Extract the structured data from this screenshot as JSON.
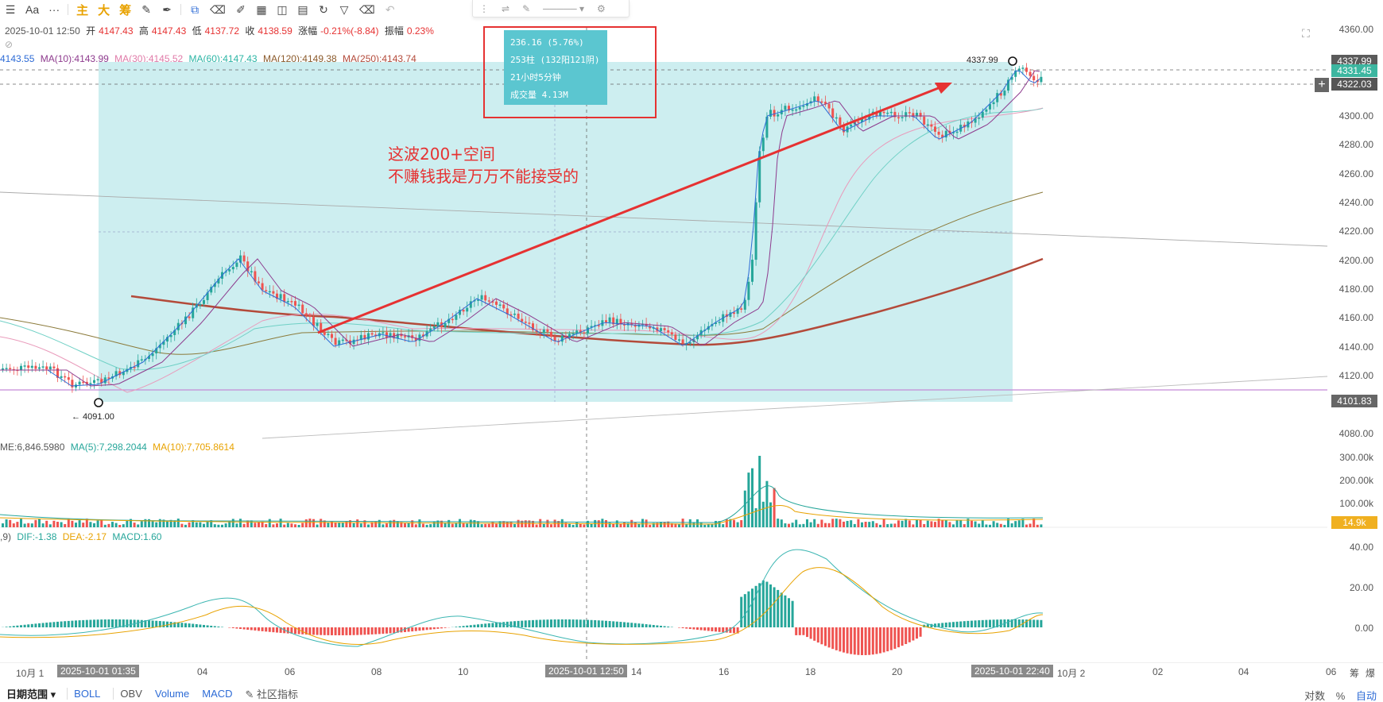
{
  "toolbar": {
    "items": [
      "Aa",
      "···"
    ],
    "cn_items": [
      "主",
      "大",
      "筹"
    ]
  },
  "ohlc_row": {
    "date": "2025-10-01 12:50",
    "open_label": "开",
    "open": "4147.43",
    "high_label": "高",
    "high": "4147.43",
    "low_label": "低",
    "low": "4137.72",
    "close_label": "收",
    "close": "4138.59",
    "change_label": "涨幅",
    "change": "-0.21%(-8.84)",
    "amp_label": "振幅",
    "amp": "0.23%"
  },
  "ma_row": {
    "first": "4143.55",
    "ma10": "MA(10):4143.99",
    "ma30": "MA(30):4145.52",
    "ma60": "MA(60):4147.43",
    "ma120": "MA(120):4149.38",
    "ma250": "MA(250):4143.74"
  },
  "tooltip": {
    "line1": "236.16 (5.76%)",
    "line2": "253柱 (132阳121阴)",
    "line3": "21小时5分钟",
    "line4": "成交量 4.13M"
  },
  "annotation": {
    "line1": "这波200+空间",
    "line2": "不赚钱我是万万不能接受的"
  },
  "marks": {
    "high_label": "4337.99",
    "low_label": "← 4091.00"
  },
  "price_axis": {
    "ticks": [
      "4360.00",
      "4300.00",
      "4280.00",
      "4260.00",
      "4240.00",
      "4220.00",
      "4200.00",
      "4180.00",
      "4160.00",
      "4140.00",
      "4120.00",
      "4080.00"
    ],
    "tag_high": "4337.99",
    "tag_last": "4331.45",
    "tag_cross": "4322.03",
    "tag_low": "4101.83"
  },
  "volume": {
    "legend_a": "ME:6,846.5980",
    "legend_b": "MA(5):7,298.2044",
    "legend_c": "MA(10):7,705.8614",
    "ticks": [
      "300.00k",
      "200.00k",
      "100.00k"
    ],
    "tag": "14.9k"
  },
  "macd": {
    "legend_a": ",9)",
    "legend_b": "DIF:-1.38",
    "legend_c": "DEA:-2.17",
    "legend_d": "MACD:1.60",
    "ticks": [
      "40.00",
      "20.00",
      "0.00"
    ]
  },
  "time_axis": {
    "labels": [
      "10月 1",
      "04",
      "06",
      "08",
      "10",
      "14",
      "16",
      "18",
      "20",
      "10月 2",
      "02",
      "04",
      "06"
    ],
    "hl_start": "2025-10-01 01:35",
    "hl_cross": "2025-10-01 12:50",
    "hl_end": "2025-10-01 22:40"
  },
  "bottom_bar": {
    "range": "日期范围",
    "boll": "BOLL",
    "obv": "OBV",
    "volume": "Volume",
    "macd": "MACD",
    "custom": "社区指标",
    "right_a": "筹",
    "right_b": "爆",
    "scale_a": "对数",
    "scale_b": "%",
    "scale_c": "自动"
  },
  "colors": {
    "up": "#26a69a",
    "down": "#ef5350",
    "range_box": "#cdeef0",
    "arrow": "#e63232",
    "ma120": "#8b4513",
    "ma250": "#b34a3a"
  }
}
